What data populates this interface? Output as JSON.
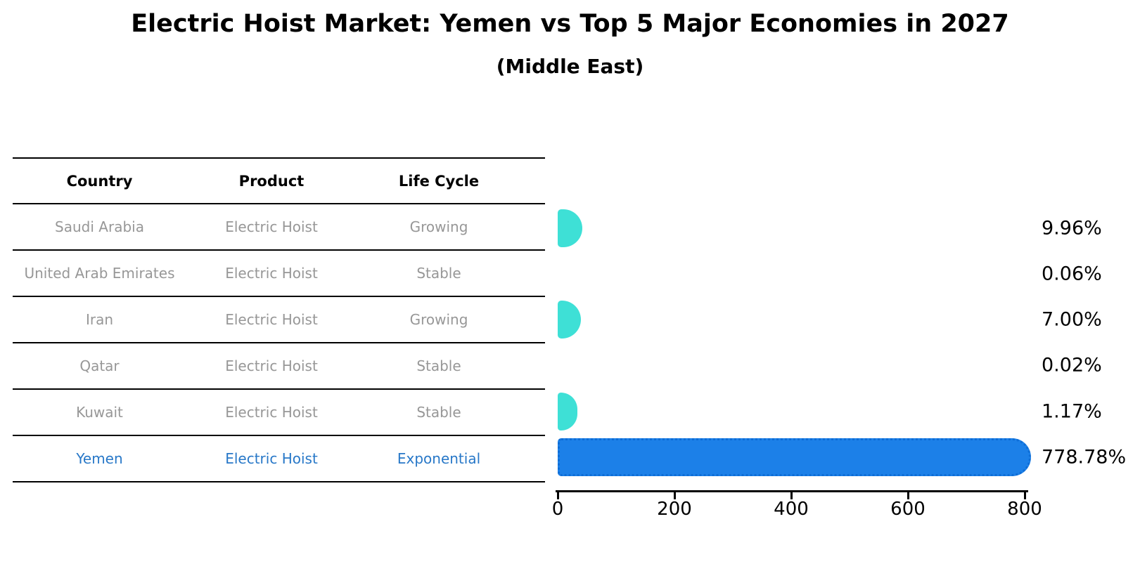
{
  "header": {
    "title": "Electric Hoist Market: Yemen vs Top 5 Major Economies in 2027",
    "subtitle": "(Middle East)"
  },
  "table": {
    "headers": [
      "Country",
      "Product",
      "Life Cycle"
    ],
    "rows": [
      {
        "country": "Saudi Arabia",
        "product": "Electric Hoist",
        "life_cycle": "Growing",
        "highlight": false
      },
      {
        "country": "United Arab Emirates",
        "product": "Electric Hoist",
        "life_cycle": "Stable",
        "highlight": false
      },
      {
        "country": "Iran",
        "product": "Electric Hoist",
        "life_cycle": "Growing",
        "highlight": false
      },
      {
        "country": "Qatar",
        "product": "Electric Hoist",
        "life_cycle": "Stable",
        "highlight": false
      },
      {
        "country": "Kuwait",
        "product": "Electric Hoist",
        "life_cycle": "Stable",
        "highlight": false
      },
      {
        "country": "Yemen",
        "product": "Electric Hoist",
        "life_cycle": "Exponential",
        "highlight": true
      }
    ]
  },
  "chart_data": {
    "type": "bar",
    "orientation": "horizontal",
    "title": "Electric Hoist Market: Yemen vs Top 5 Major Economies in 2027",
    "subtitle": "(Middle East)",
    "categories": [
      "Saudi Arabia",
      "United Arab Emirates",
      "Iran",
      "Qatar",
      "Kuwait",
      "Yemen"
    ],
    "values": [
      9.96,
      0.06,
      7.0,
      0.02,
      1.17,
      778.78
    ],
    "value_labels": [
      "9.96%",
      "0.06%",
      "7.00%",
      "0.02%",
      "1.17%",
      "778.78%"
    ],
    "xlim": [
      0,
      800
    ],
    "xticks": [
      0,
      200,
      400,
      600,
      800
    ],
    "grid": false,
    "legend": false,
    "default_bar_color": "#3EE0D6",
    "highlight_bar_color": "#1C80E8",
    "highlight_bar_edge_color": "#0E6DD6",
    "highlight_text_color": "#2878C8",
    "row_text_color": "#979797"
  }
}
